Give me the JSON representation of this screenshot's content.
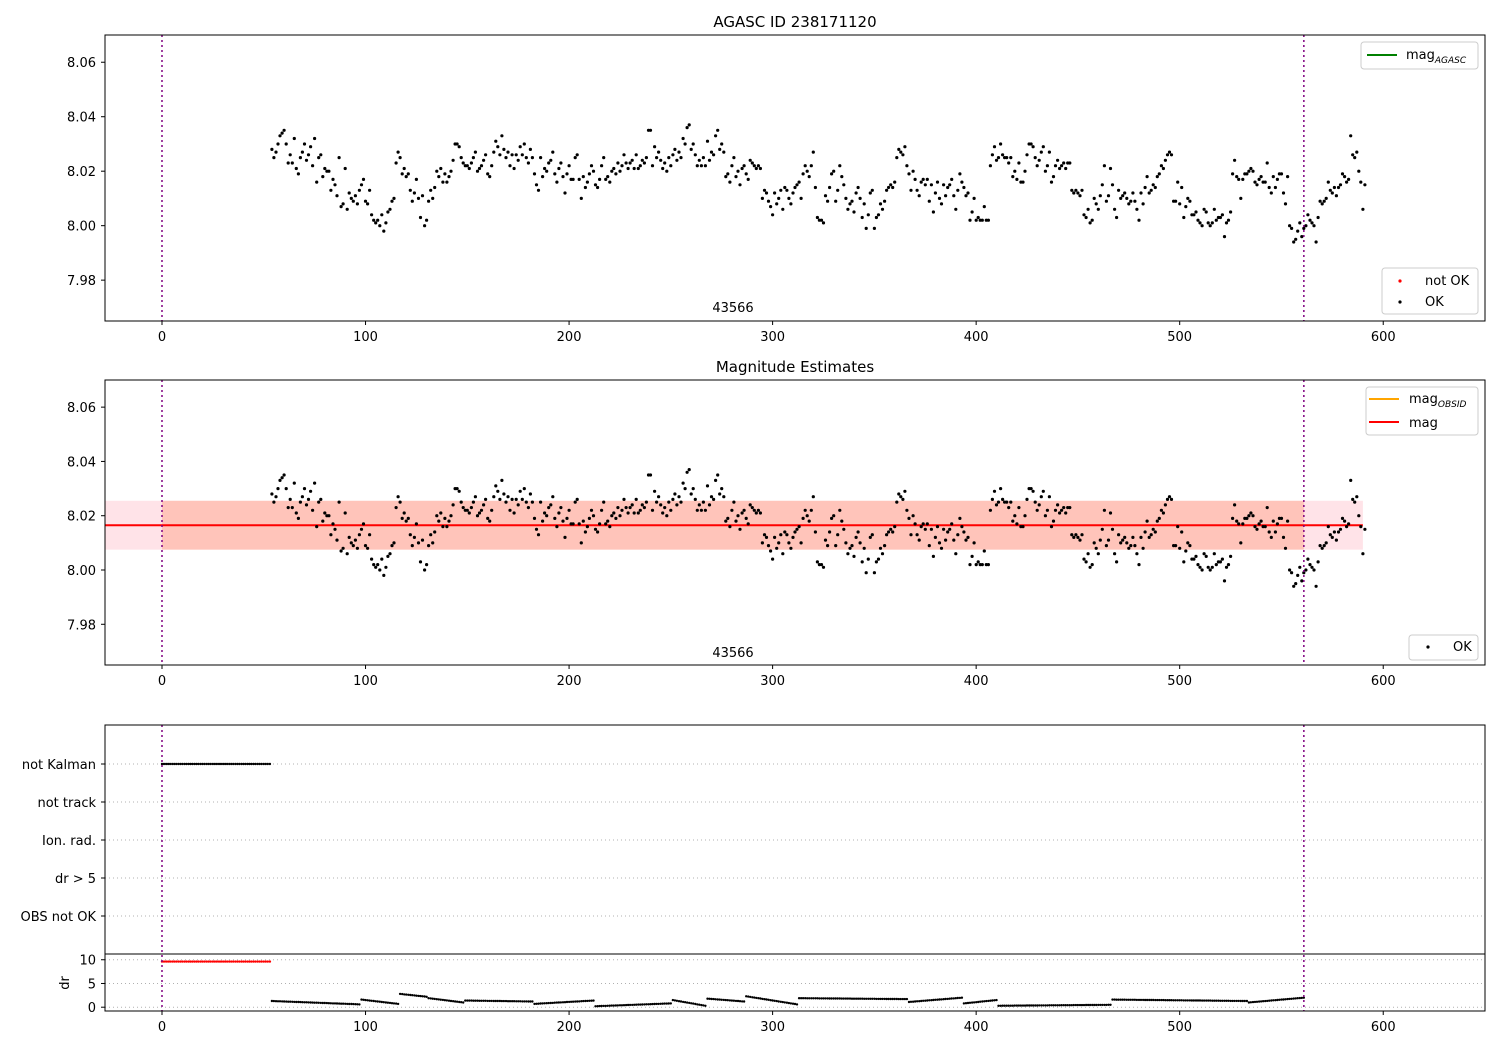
{
  "figure": {
    "background": "#ffffff"
  },
  "colors": {
    "ok_point": "#000000",
    "not_ok_point": "#ff0000",
    "mag_agasc_line": "#008000",
    "mag_obsid_line": "#ffa500",
    "mag_line": "#ff0000",
    "obsid_band": "#ff7f50",
    "mag_band": "#ffc0cb",
    "obsid_boundary": "#800080",
    "grid": "#b0b0b0"
  },
  "chart_data": [
    {
      "type": "scatter",
      "title": "AGASC ID 238171120",
      "xlim": [
        -28,
        650
      ],
      "ylim": [
        7.965,
        8.07
      ],
      "xticks": [
        0,
        100,
        200,
        300,
        400,
        500,
        600
      ],
      "yticks": [
        7.98,
        8.0,
        8.02,
        8.04,
        8.06
      ],
      "ytick_labels": [
        "7.98",
        "8.00",
        "8.02",
        "8.04",
        "8.06"
      ],
      "obsid_boundaries": [
        0,
        561
      ],
      "obsid_label": {
        "text": "43566",
        "x": 280
      },
      "legends": [
        {
          "placement": "upper-right",
          "entries": [
            {
              "label": "mag",
              "sub": "AGASC",
              "kind": "line",
              "color_key": "mag_agasc_line"
            }
          ]
        },
        {
          "placement": "lower-right",
          "entries": [
            {
              "label": "not OK",
              "kind": "marker",
              "color_key": "not_ok_point"
            },
            {
              "label": "OK",
              "kind": "marker",
              "color_key": "ok_point"
            }
          ]
        }
      ],
      "series": [
        {
          "name": "OK",
          "x_start": 54,
          "x_step": 1,
          "y": [
            8.028,
            8.025,
            8.027,
            8.03,
            8.033,
            8.034,
            8.035,
            8.03,
            8.023,
            8.026,
            8.023,
            8.032,
            8.021,
            8.019,
            8.025,
            8.027,
            8.03,
            8.024,
            8.026,
            8.029,
            8.022,
            8.032,
            8.016,
            8.025,
            8.026,
            8.018,
            8.021,
            8.02,
            8.02,
            8.013,
            8.017,
            8.015,
            8.011,
            8.025,
            8.007,
            8.008,
            8.021,
            8.006,
            8.012,
            8.01,
            8.009,
            8.011,
            8.008,
            8.013,
            8.015,
            8.017,
            8.009,
            8.008,
            8.013,
            8.004,
            8.002,
            8.001,
            8.002,
            8.0,
            8.004,
            7.998,
            8.001,
            8.005,
            8.006,
            8.009,
            8.01,
            8.023,
            8.027,
            8.025,
            8.019,
            8.021,
            8.018,
            8.019,
            8.013,
            8.009,
            8.012,
            8.017,
            8.01,
            8.003,
            8.011,
            8.0,
            8.002,
            8.009,
            8.013,
            8.01,
            8.014,
            8.02,
            8.018,
            8.021,
            8.016,
            8.019,
            8.016,
            8.018,
            8.02,
            8.024,
            8.03,
            8.03,
            8.029,
            8.025,
            8.023,
            8.022,
            8.022,
            8.021,
            8.023,
            8.025,
            8.027,
            8.02,
            8.021,
            8.022,
            8.024,
            8.026,
            8.019,
            8.018,
            8.022,
            8.027,
            8.031,
            8.029,
            8.026,
            8.033,
            8.028,
            8.025,
            8.027,
            8.022,
            8.026,
            8.021,
            8.026,
            8.024,
            8.029,
            8.026,
            8.03,
            8.025,
            8.023,
            8.028,
            8.025,
            8.019,
            8.015,
            8.013,
            8.025,
            8.018,
            8.021,
            8.02,
            8.023,
            8.024,
            8.027,
            8.019,
            8.016,
            8.021,
            8.023,
            8.018,
            8.012,
            8.019,
            8.022,
            8.017,
            8.017,
            8.025,
            8.026,
            8.017,
            8.01,
            8.018,
            8.014,
            8.016,
            8.019,
            8.022,
            8.02,
            8.015,
            8.014,
            8.017,
            8.022,
            8.025,
            8.017,
            8.018,
            8.016,
            8.02,
            8.021,
            8.019,
            8.023,
            8.02,
            8.022,
            8.026,
            8.023,
            8.021,
            8.023,
            8.024,
            8.021,
            8.026,
            8.021,
            8.022,
            8.024,
            8.023,
            8.025,
            8.035,
            8.035,
            8.022,
            8.029,
            8.025,
            8.027,
            8.024,
            8.021,
            8.023,
            8.02,
            8.025,
            8.022,
            8.026,
            8.028,
            8.024,
            8.027,
            8.025,
            8.032,
            8.03,
            8.036,
            8.037,
            8.028,
            8.03,
            8.026,
            8.022,
            8.024,
            8.022,
            8.025,
            8.022,
            8.031,
            8.024,
            8.027,
            8.026,
            8.033,
            8.035,
            8.028,
            8.03,
            8.027,
            8.018,
            8.019,
            8.016,
            8.022,
            8.025,
            8.018,
            8.02,
            8.015,
            8.021,
            8.022,
            8.019,
            8.017,
            8.024,
            8.023,
            8.022,
            8.021,
            8.022,
            8.021,
            8.01,
            8.013,
            8.012,
            8.009,
            8.007,
            8.004,
            8.012,
            8.008,
            8.01,
            8.013,
            8.006,
            8.014,
            8.013,
            8.01,
            8.008,
            8.012,
            8.014,
            8.015,
            8.016,
            8.01,
            8.019,
            8.022,
            8.02,
            8.018,
            8.022,
            8.027,
            8.014,
            8.003,
            8.002,
            8.002,
            8.001,
            8.011,
            8.009,
            8.014,
            8.019,
            8.02,
            8.009,
            8.013,
            8.022,
            8.018,
            8.015,
            8.01,
            8.006,
            8.008,
            8.009,
            8.005,
            8.012,
            8.014,
            8.01,
            8.003,
            8.008,
            7.999,
            8.004,
            8.012,
            8.013,
            7.999,
            8.003,
            8.004,
            8.008,
            8.006,
            8.009,
            8.013,
            8.014,
            8.015,
            8.014,
            8.016,
            8.025,
            8.028,
            8.027,
            8.026,
            8.029,
            8.022,
            8.019,
            8.013,
            8.02,
            8.017,
            8.013,
            8.011,
            8.016,
            8.017,
            8.015,
            8.017,
            8.009,
            8.015,
            8.005,
            8.012,
            8.016,
            8.01,
            8.008,
            8.015,
            8.011,
            8.014,
            8.015,
            8.017,
            8.011,
            8.006,
            8.013,
            8.019,
            8.016,
            8.014,
            8.011,
            8.012,
            8.002,
            8.005,
            8.01,
            8.002,
            8.003,
            8.002,
            8.002,
            8.007,
            8.002,
            8.002,
            8.022,
            8.026,
            8.029,
            8.024,
            8.025,
            8.03,
            8.026,
            8.025,
            8.025,
            8.023,
            8.025,
            8.018,
            8.02,
            8.017,
            8.023,
            8.016,
            8.016,
            8.02,
            8.026,
            8.03,
            8.03,
            8.029,
            8.025,
            8.022,
            8.024,
            8.027,
            8.029,
            8.02,
            8.022,
            8.027,
            8.016,
            8.018,
            8.022,
            8.024,
            8.021,
            8.022,
            8.023,
            8.021,
            8.023,
            8.023,
            8.013,
            8.012,
            8.013,
            8.012,
            8.011,
            8.013,
            8.004,
            8.003,
            8.006,
            8.001,
            8.002,
            8.01,
            8.008,
            8.006,
            8.011,
            8.015,
            8.022,
            8.009,
            8.011,
            8.021,
            8.015,
            8.006,
            8.003,
            8.013,
            8.01,
            8.011,
            8.012,
            8.01,
            8.008,
            8.009,
            8.012,
            8.009,
            8.006,
            8.002,
            8.012,
            8.008,
            8.014,
            8.018,
            8.012,
            8.013,
            8.015,
            8.014,
            8.018,
            8.019,
            8.022,
            8.021,
            8.024,
            8.026,
            8.027,
            8.026,
            8.009,
            8.009,
            8.016,
            8.008,
            8.014,
            8.003,
            8.007,
            8.01,
            8.009,
            8.004,
            8.004,
            8.005,
            8.002,
            8.001,
            8.0,
            8.006,
            8.005,
            8.001,
            8.0,
            8.001,
            8.006,
            8.002,
            8.003,
            8.003,
            8.004,
            7.996,
            8.001,
            8.002,
            8.005,
            8.019,
            8.024,
            8.018,
            8.017,
            8.01,
            8.017,
            8.019,
            8.019,
            8.02,
            8.021,
            8.02,
            8.016,
            8.015,
            8.017,
            8.018,
            8.016,
            8.016,
            8.023,
            8.014,
            8.012,
            8.018,
            8.014,
            8.017,
            8.019,
            8.019,
            8.012,
            8.008,
            8.018,
            8.0,
            7.999,
            7.994,
            7.995,
            7.998,
            8.001,
            7.996,
            7.999,
            8.0,
            8.004,
            8.002,
            8.001,
            8.0,
            7.994,
            8.003,
            8.009,
            8.008,
            8.009,
            8.01,
            8.016,
            8.013,
            8.012,
            8.014,
            8.011,
            8.014,
            8.015,
            8.019,
            8.018,
            8.016,
            8.017,
            8.033,
            8.026,
            8.025,
            8.027,
            8.02,
            8.016,
            8.006,
            8.015
          ]
        }
      ]
    },
    {
      "type": "scatter",
      "title": "Magnitude Estimates",
      "xlim": [
        -28,
        650
      ],
      "ylim": [
        7.965,
        8.07
      ],
      "xticks": [
        0,
        100,
        200,
        300,
        400,
        500,
        600
      ],
      "yticks": [
        7.98,
        8.0,
        8.02,
        8.04,
        8.06
      ],
      "ytick_labels": [
        "7.98",
        "8.00",
        "8.02",
        "8.04",
        "8.06"
      ],
      "obsid_boundaries": [
        0,
        561
      ],
      "obsid_label": {
        "text": "43566",
        "x": 280
      },
      "mag": 8.0165,
      "mag_band": [
        8.0075,
        8.0255
      ],
      "mag_span_x": [
        -28,
        590
      ],
      "obsid_band": [
        8.0075,
        8.0255
      ],
      "obsid_span_x": [
        0,
        561
      ],
      "legends": [
        {
          "placement": "upper-right",
          "entries": [
            {
              "label": "mag",
              "sub": "OBSID",
              "kind": "line",
              "color_key": "mag_obsid_line"
            },
            {
              "label": "mag",
              "kind": "line",
              "color_key": "mag_line"
            }
          ]
        },
        {
          "placement": "lower-right",
          "entries": [
            {
              "label": "OK",
              "kind": "marker",
              "color_key": "ok_point"
            }
          ]
        }
      ],
      "series": [
        {
          "name": "OK",
          "same_as_series_of_chart": 0
        }
      ]
    },
    {
      "type": "scatter",
      "xlim": [
        -28,
        650
      ],
      "xticks": [
        0,
        100,
        200,
        300,
        400,
        500,
        600
      ],
      "obsid_boundaries": [
        0,
        561
      ],
      "flag_rows": [
        "not Kalman",
        "not track",
        "Ion. rad.",
        "dr > 5",
        "OBS not OK"
      ],
      "flag_points": [
        {
          "row": "not Kalman",
          "x_from": 0,
          "x_to": 53
        }
      ],
      "dr_axis": {
        "ylabel": "dr",
        "ylim": [
          -0.8,
          11
        ],
        "yticks": [
          0,
          5,
          10
        ],
        "ytick_labels": [
          "0",
          "5",
          "10"
        ]
      },
      "dr_series": [
        {
          "name": "not OK",
          "x_from": 0,
          "x_to": 53,
          "value": 9.6
        },
        {
          "name": "OK",
          "segments": [
            {
              "x_from": 54,
              "x_to": 97,
              "start": 1.3,
              "end": 0.6
            },
            {
              "x_from": 98,
              "x_to": 116,
              "start": 1.6,
              "end": 0.7
            },
            {
              "x_from": 117,
              "x_to": 130,
              "start": 2.8,
              "end": 2.2
            },
            {
              "x_from": 131,
              "x_to": 148,
              "start": 1.9,
              "end": 1.0
            },
            {
              "x_from": 149,
              "x_to": 182,
              "start": 1.4,
              "end": 1.2
            },
            {
              "x_from": 183,
              "x_to": 212,
              "start": 0.7,
              "end": 1.4
            },
            {
              "x_from": 213,
              "x_to": 250,
              "start": 0.2,
              "end": 0.8
            },
            {
              "x_from": 251,
              "x_to": 267,
              "start": 1.5,
              "end": 0.3
            },
            {
              "x_from": 268,
              "x_to": 286,
              "start": 1.8,
              "end": 1.2
            },
            {
              "x_from": 287,
              "x_to": 312,
              "start": 2.3,
              "end": 0.6
            },
            {
              "x_from": 313,
              "x_to": 366,
              "start": 1.9,
              "end": 1.7
            },
            {
              "x_from": 367,
              "x_to": 393,
              "start": 1.1,
              "end": 2.0
            },
            {
              "x_from": 394,
              "x_to": 410,
              "start": 0.8,
              "end": 1.5
            },
            {
              "x_from": 411,
              "x_to": 466,
              "start": 0.3,
              "end": 0.5
            },
            {
              "x_from": 467,
              "x_to": 533,
              "start": 1.6,
              "end": 1.3
            },
            {
              "x_from": 534,
              "x_to": 561,
              "start": 1.0,
              "end": 2.0
            }
          ]
        }
      ]
    }
  ]
}
